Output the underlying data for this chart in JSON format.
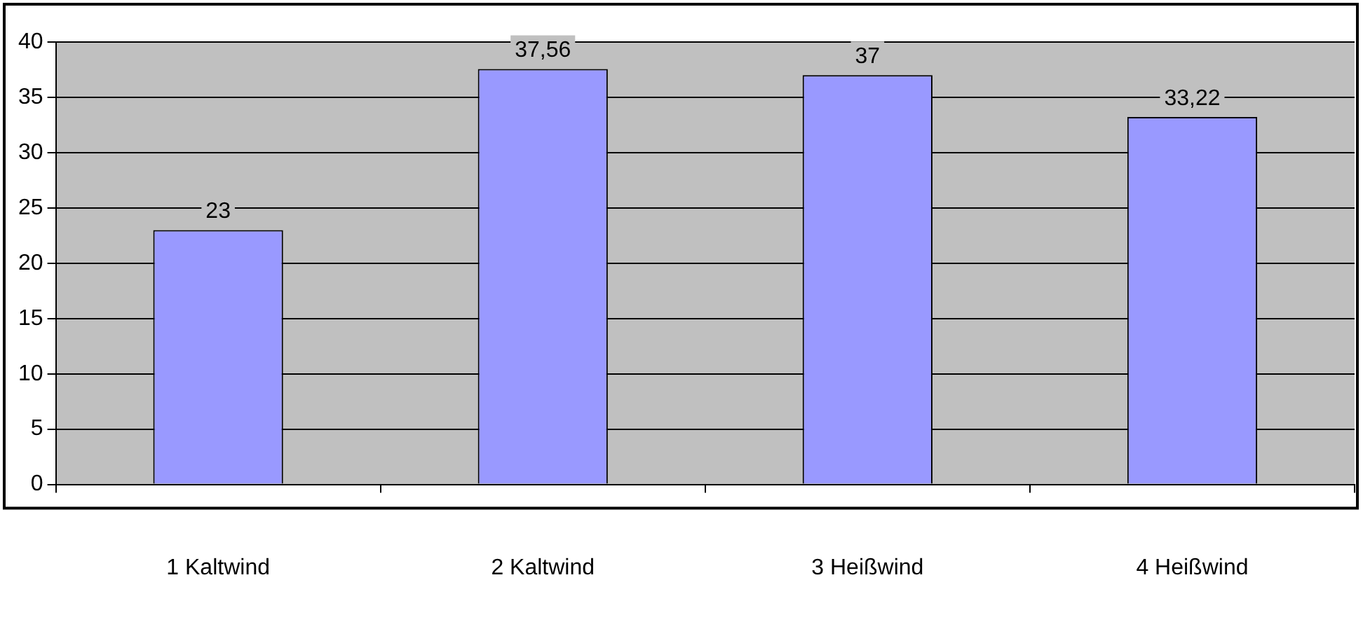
{
  "chart_data": {
    "type": "bar",
    "categories": [
      "1 Kaltwind",
      "2 Kaltwind",
      "3 Heißwind",
      "4 Heißwind"
    ],
    "values": [
      23,
      37.56,
      37,
      33.22
    ],
    "value_labels": [
      "23",
      "37,56",
      "37",
      "33,22"
    ],
    "color": "#9999ff",
    "ylim": [
      0,
      40
    ],
    "yticks": [
      0,
      5,
      10,
      15,
      20,
      25,
      30,
      35,
      40
    ],
    "grid": "y",
    "legend": false
  }
}
